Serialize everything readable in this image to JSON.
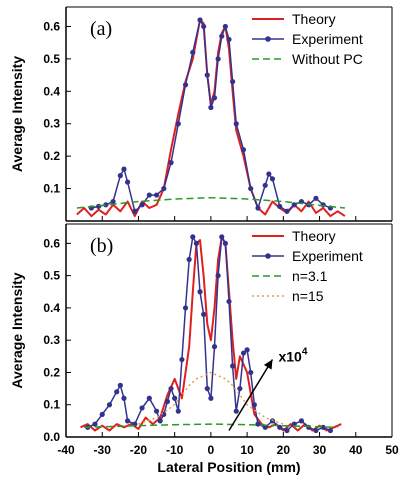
{
  "chart_data": [
    {
      "type": "line",
      "panel_label": "(a)",
      "xlim": [
        -40,
        50
      ],
      "ylim": [
        0,
        0.66
      ],
      "ylabel": "Average Intensity",
      "yticks": [
        0.1,
        0.2,
        0.3,
        0.4,
        0.5,
        0.6
      ],
      "legend_position": "top-right",
      "series": [
        {
          "name": "Theory",
          "color": "#e02020",
          "style": "solid",
          "x": [
            -37,
            -35,
            -33,
            -31,
            -29,
            -27,
            -25,
            -23,
            -21,
            -19,
            -17,
            -15,
            -13,
            -11,
            -9,
            -7,
            -5,
            -3,
            -2,
            -1,
            0,
            1,
            2,
            3,
            4,
            5,
            6,
            7,
            9,
            11,
            13,
            15,
            17,
            19,
            21,
            23,
            25,
            27,
            29,
            31,
            33,
            35,
            37
          ],
          "y": [
            0.02,
            0.04,
            0.015,
            0.035,
            0.02,
            0.05,
            0.03,
            0.06,
            0.015,
            0.06,
            0.04,
            0.05,
            0.1,
            0.22,
            0.33,
            0.43,
            0.5,
            0.62,
            0.61,
            0.45,
            0.36,
            0.4,
            0.52,
            0.58,
            0.6,
            0.53,
            0.4,
            0.28,
            0.2,
            0.1,
            0.04,
            0.02,
            0.06,
            0.04,
            0.025,
            0.05,
            0.03,
            0.06,
            0.025,
            0.04,
            0.015,
            0.03,
            0.015
          ]
        },
        {
          "name": "Experiment",
          "color": "#33338f",
          "style": "solid-with-markers",
          "x": [
            -33,
            -31,
            -29,
            -27,
            -25,
            -24,
            -23,
            -21,
            -19,
            -17,
            -15,
            -13,
            -11,
            -9,
            -7,
            -5,
            -3,
            -2,
            -1,
            0,
            1,
            2,
            3,
            4,
            5,
            6,
            7,
            9,
            11,
            13,
            15,
            16,
            17,
            19,
            21,
            23,
            25,
            27,
            29,
            31,
            33
          ],
          "y": [
            0.04,
            0.045,
            0.05,
            0.06,
            0.14,
            0.16,
            0.12,
            0.03,
            0.05,
            0.08,
            0.08,
            0.1,
            0.18,
            0.3,
            0.42,
            0.52,
            0.62,
            0.6,
            0.45,
            0.35,
            0.38,
            0.5,
            0.57,
            0.6,
            0.56,
            0.43,
            0.3,
            0.22,
            0.1,
            0.04,
            0.11,
            0.145,
            0.13,
            0.045,
            0.03,
            0.05,
            0.06,
            0.05,
            0.07,
            0.05,
            0.04
          ]
        },
        {
          "name": "Without PC",
          "color": "#2a9a2a",
          "style": "dashed",
          "x": [
            -37,
            -30,
            -20,
            -10,
            0,
            10,
            20,
            30,
            37
          ],
          "y": [
            0.04,
            0.048,
            0.06,
            0.068,
            0.072,
            0.068,
            0.06,
            0.048,
            0.04
          ]
        }
      ]
    },
    {
      "type": "line",
      "panel_label": "(b)",
      "xlim": [
        -40,
        50
      ],
      "ylim": [
        0,
        0.66
      ],
      "xlabel": "Lateral Position (mm)",
      "ylabel": "Average Intensity",
      "xticks": [
        -40,
        -30,
        -20,
        -10,
        0,
        10,
        20,
        30,
        40,
        50
      ],
      "yticks": [
        0.0,
        0.1,
        0.2,
        0.3,
        0.4,
        0.5,
        0.6
      ],
      "legend_position": "top-right",
      "annotation": {
        "text_base": "x10",
        "text_exp": "4"
      },
      "series": [
        {
          "name": "Theory",
          "color": "#e02020",
          "style": "solid",
          "x": [
            -36,
            -34,
            -32,
            -30,
            -28,
            -26,
            -24,
            -22,
            -20,
            -18,
            -16,
            -14,
            -12,
            -10,
            -8,
            -6,
            -5,
            -4,
            -3,
            -2,
            -1,
            0,
            1,
            2,
            3,
            4,
            5,
            6,
            7,
            8,
            10,
            12,
            14,
            16,
            18,
            20,
            22,
            24,
            26,
            28,
            30,
            32,
            34,
            36
          ],
          "y": [
            0.03,
            0.04,
            0.02,
            0.035,
            0.02,
            0.04,
            0.03,
            0.04,
            0.025,
            0.06,
            0.04,
            0.06,
            0.13,
            0.18,
            0.12,
            0.28,
            0.45,
            0.6,
            0.61,
            0.5,
            0.35,
            0.3,
            0.4,
            0.55,
            0.62,
            0.6,
            0.45,
            0.3,
            0.18,
            0.25,
            0.2,
            0.07,
            0.04,
            0.03,
            0.04,
            0.02,
            0.04,
            0.02,
            0.04,
            0.02,
            0.035,
            0.02,
            0.03,
            0.04
          ]
        },
        {
          "name": "Experiment",
          "color": "#33338f",
          "style": "solid-with-markers",
          "x": [
            -34,
            -32,
            -30,
            -28,
            -26,
            -25,
            -24,
            -23,
            -21,
            -19,
            -17,
            -15,
            -14,
            -13,
            -12,
            -11,
            -10,
            -9,
            -8,
            -7,
            -6,
            -5,
            -4,
            -3,
            -2,
            -1,
            0,
            1,
            2,
            3,
            4,
            5,
            6,
            7,
            8,
            9,
            10,
            11,
            12,
            13,
            15,
            17,
            19,
            21,
            23,
            25,
            27,
            29,
            31,
            33
          ],
          "y": [
            0.03,
            0.04,
            0.07,
            0.1,
            0.14,
            0.16,
            0.12,
            0.05,
            0.04,
            0.09,
            0.12,
            0.08,
            0.05,
            0.07,
            0.11,
            0.15,
            0.12,
            0.08,
            0.24,
            0.4,
            0.55,
            0.62,
            0.6,
            0.45,
            0.38,
            0.15,
            0.12,
            0.28,
            0.5,
            0.62,
            0.6,
            0.42,
            0.22,
            0.08,
            0.15,
            0.26,
            0.27,
            0.2,
            0.1,
            0.04,
            0.03,
            0.05,
            0.03,
            0.02,
            0.04,
            0.05,
            0.03,
            0.02,
            0.03,
            0.02
          ]
        },
        {
          "name": "n=3.1",
          "color": "#2a9a2a",
          "style": "dashed",
          "x": [
            -35,
            -20,
            -10,
            0,
            10,
            20,
            35
          ],
          "y": [
            0.03,
            0.035,
            0.038,
            0.04,
            0.038,
            0.035,
            0.03
          ]
        },
        {
          "name": "n=15",
          "color": "#e0a040",
          "style": "dotted",
          "x": [
            -20,
            -15,
            -10,
            -8,
            -6,
            -4,
            -2,
            0,
            2,
            4,
            6,
            8,
            10,
            15,
            20
          ],
          "y": [
            0.04,
            0.06,
            0.1,
            0.13,
            0.16,
            0.18,
            0.19,
            0.2,
            0.19,
            0.18,
            0.16,
            0.13,
            0.1,
            0.06,
            0.04
          ]
        }
      ]
    }
  ]
}
